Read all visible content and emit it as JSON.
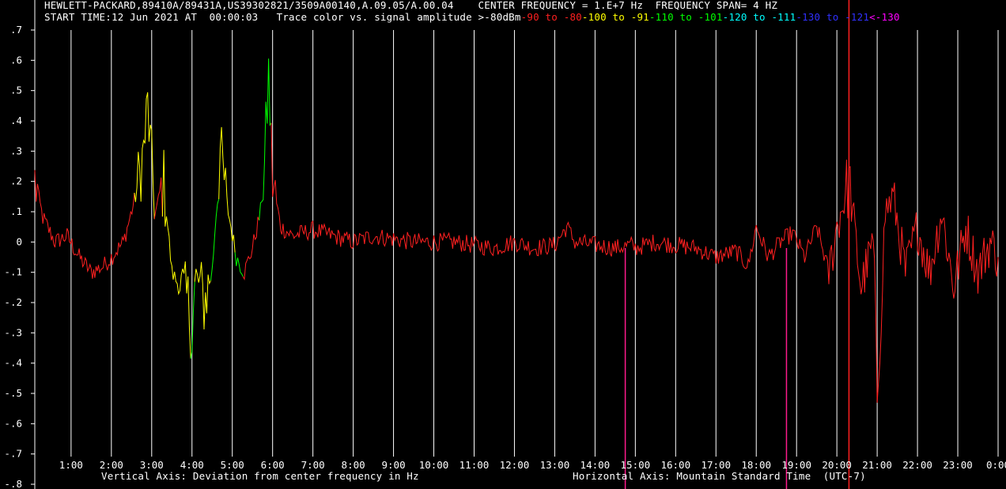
{
  "header": {
    "line1": "HEWLETT-PACKARD,89410A/89431A,US39302821/3509A00140,A.09.05/A.00.04    CENTER FREQUENCY = 1.E+7 Hz  FREQUENCY SPAN= 4 HZ",
    "start_time": "START TIME:12 Jun 2021 AT  00:00:03",
    "legend_prefix": "Trace color vs. signal amplitude ",
    "legend": [
      {
        "text": ">-80dBm",
        "color": "#ffffff"
      },
      {
        "text": "-90",
        "color": "#ff2020"
      },
      {
        "text": " to ",
        "color": "#ff2020"
      },
      {
        "text": "-80",
        "color": "#ff2020"
      },
      {
        "text": "-100",
        "color": "#ffff00"
      },
      {
        "text": " to ",
        "color": "#ffff00"
      },
      {
        "text": "-91",
        "color": "#ffff00"
      },
      {
        "text": "-110",
        "color": "#00ff00"
      },
      {
        "text": " to ",
        "color": "#00ff00"
      },
      {
        "text": "-101",
        "color": "#00ff00"
      },
      {
        "text": "-120",
        "color": "#00ffff"
      },
      {
        "text": " to ",
        "color": "#00ffff"
      },
      {
        "text": "-111",
        "color": "#00ffff"
      },
      {
        "text": "-130",
        "color": "#3030ff"
      },
      {
        "text": " to ",
        "color": "#3030ff"
      },
      {
        "text": "-121",
        "color": "#3030ff"
      },
      {
        "text": "<-130",
        "color": "#ff00ff"
      }
    ]
  },
  "footer": {
    "vertical_axis": "Vertical Axis: Deviation from center frequency in Hz",
    "horizontal_axis": "Horizontal Axis: Mountain Standard Time  (UTC-7)"
  },
  "chart_data": {
    "type": "line",
    "title": "",
    "xlabel": "Horizontal Axis: Mountain Standard Time  (UTC-7)",
    "ylabel": "Vertical Axis: Deviation from center frequency in Hz",
    "xlim": [
      0.1,
      24.0
    ],
    "ylim": [
      -0.8,
      0.7
    ],
    "grid": "vertical lines at each hour",
    "background": "#000000",
    "y_ticks": [
      ".7",
      ".6",
      ".5",
      ".4",
      ".3",
      ".2",
      ".1",
      "0",
      "-.1",
      "-.2",
      "-.3",
      "-.4",
      "-.5",
      "-.6",
      "-.7",
      "-.8"
    ],
    "y_tick_values": [
      0.7,
      0.6,
      0.5,
      0.4,
      0.3,
      0.2,
      0.1,
      0,
      -0.1,
      -0.2,
      -0.3,
      -0.4,
      -0.5,
      -0.6,
      -0.7,
      -0.8
    ],
    "x_ticks": [
      "1:00",
      "2:00",
      "3:00",
      "4:00",
      "5:00",
      "6:00",
      "7:00",
      "8:00",
      "9:00",
      "10:00",
      "11:00",
      "12:00",
      "13:00",
      "14:00",
      "15:00",
      "16:00",
      "17:00",
      "18:00",
      "19:00",
      "20:00",
      "21:00",
      "22:00",
      "23:00",
      "0:00"
    ],
    "x_tick_values": [
      1,
      2,
      3,
      4,
      5,
      6,
      7,
      8,
      9,
      10,
      11,
      12,
      13,
      14,
      15,
      16,
      17,
      18,
      19,
      20,
      21,
      22,
      23,
      24
    ],
    "series": [
      {
        "color_by_amplitude": true,
        "x": [
          0.1,
          0.3,
          0.6,
          0.9,
          1.2,
          1.5,
          1.8,
          2.0,
          2.3,
          2.6,
          2.8,
          2.9,
          3.0,
          3.1,
          3.3,
          3.5,
          3.7,
          3.9,
          4.0,
          4.1,
          4.3,
          4.5,
          4.7,
          4.9,
          5.1,
          5.3,
          5.5,
          5.7,
          5.8,
          5.9,
          6.0,
          6.2,
          6.5,
          7.0,
          7.5,
          8.0,
          8.5,
          9.0,
          9.5,
          10.0,
          10.5,
          11.0,
          11.5,
          12.0,
          12.5,
          13.0,
          13.3,
          13.5,
          14.0,
          14.5,
          14.9,
          15.0,
          15.5,
          16.0,
          16.5,
          17.0,
          17.5,
          17.8,
          18.0,
          18.3,
          18.6,
          18.9,
          19.2,
          19.5,
          19.8,
          20.0,
          20.3,
          20.6,
          20.9,
          21.0,
          21.2,
          21.4,
          21.7,
          22.0,
          22.3,
          22.6,
          22.9,
          23.2,
          23.5,
          23.8,
          24.0
        ],
        "y": [
          0.2,
          0.08,
          0.0,
          0.02,
          -0.05,
          -0.1,
          -0.08,
          -0.05,
          0.0,
          0.15,
          0.3,
          0.45,
          0.25,
          0.1,
          0.2,
          -0.1,
          -0.15,
          -0.2,
          -0.3,
          -0.1,
          -0.2,
          -0.1,
          0.3,
          0.1,
          -0.05,
          -0.1,
          -0.02,
          0.1,
          0.25,
          0.55,
          0.2,
          0.05,
          0.02,
          0.04,
          0.02,
          0.0,
          0.02,
          0.01,
          0.0,
          0.0,
          0.0,
          -0.01,
          -0.02,
          0.0,
          -0.02,
          -0.01,
          0.05,
          0.0,
          -0.01,
          -0.02,
          -0.01,
          -0.02,
          0.0,
          -0.01,
          -0.02,
          -0.05,
          -0.03,
          -0.08,
          0.05,
          -0.05,
          0.0,
          0.03,
          -0.05,
          0.05,
          -0.1,
          0.05,
          0.2,
          -0.15,
          0.0,
          -0.5,
          0.1,
          0.15,
          -0.1,
          0.05,
          -0.1,
          0.1,
          -0.15,
          0.05,
          -0.1,
          0.0,
          -0.05
        ],
        "amplitude_dbm": [
          -85,
          -85,
          -85,
          -85,
          -85,
          -85,
          -85,
          -85,
          -85,
          -95,
          -95,
          -95,
          -95,
          -85,
          -95,
          -95,
          -95,
          -95,
          -105,
          -95,
          -95,
          -105,
          -95,
          -95,
          -105,
          -85,
          -85,
          -105,
          -105,
          -105,
          -85,
          -85,
          -85,
          -85,
          -85,
          -85,
          -85,
          -85,
          -85,
          -85,
          -85,
          -85,
          -85,
          -85,
          -85,
          -85,
          -85,
          -85,
          -85,
          -85,
          -85,
          -85,
          -85,
          -85,
          -85,
          -85,
          -85,
          -85,
          -85,
          -85,
          -85,
          -85,
          -85,
          -85,
          -85,
          -85,
          -85,
          -85,
          -85,
          -85,
          -85,
          -85,
          -85,
          -85,
          -85,
          -85,
          -85,
          -85,
          -85,
          -85,
          -85
        ]
      }
    ],
    "markers": [
      {
        "x": 14.75,
        "color": "#ff1a8c"
      },
      {
        "x": 18.75,
        "color": "#ff1a8c"
      },
      {
        "x": 20.3,
        "color": "#ff2020"
      }
    ]
  }
}
